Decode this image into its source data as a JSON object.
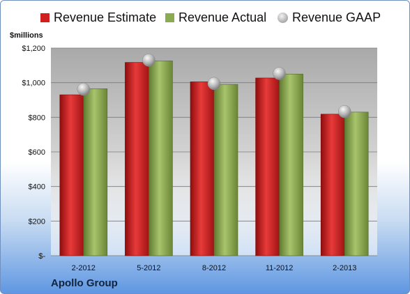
{
  "legend": {
    "estimate": "Revenue Estimate",
    "actual": "Revenue Actual",
    "gaap": "Revenue GAAP"
  },
  "units_label": "$millions",
  "company": "Apollo Group",
  "colors": {
    "estimate": "#d11f1f",
    "actual": "#8aab50",
    "gaap": "#a8a8a8"
  },
  "chart_data": {
    "type": "bar",
    "categories": [
      "2-2012",
      "5-2012",
      "8-2012",
      "11-2012",
      "2-2013"
    ],
    "series": [
      {
        "name": "Revenue Estimate",
        "values": [
          930,
          1117,
          1005,
          1027,
          818
        ]
      },
      {
        "name": "Revenue Actual",
        "values": [
          965,
          1126,
          990,
          1050,
          830
        ]
      },
      {
        "name": "Revenue GAAP",
        "values": [
          962,
          1130,
          995,
          1053,
          833
        ]
      }
    ],
    "ylabel": "$millions",
    "ylim": [
      0,
      1200
    ],
    "yticks": [
      0,
      200,
      400,
      600,
      800,
      1000,
      1200
    ],
    "ytick_labels": [
      "$-",
      "$200",
      "$400",
      "$600",
      "$800",
      "$1,000",
      "$1,200"
    ],
    "grid": true,
    "legend_position": "top"
  }
}
